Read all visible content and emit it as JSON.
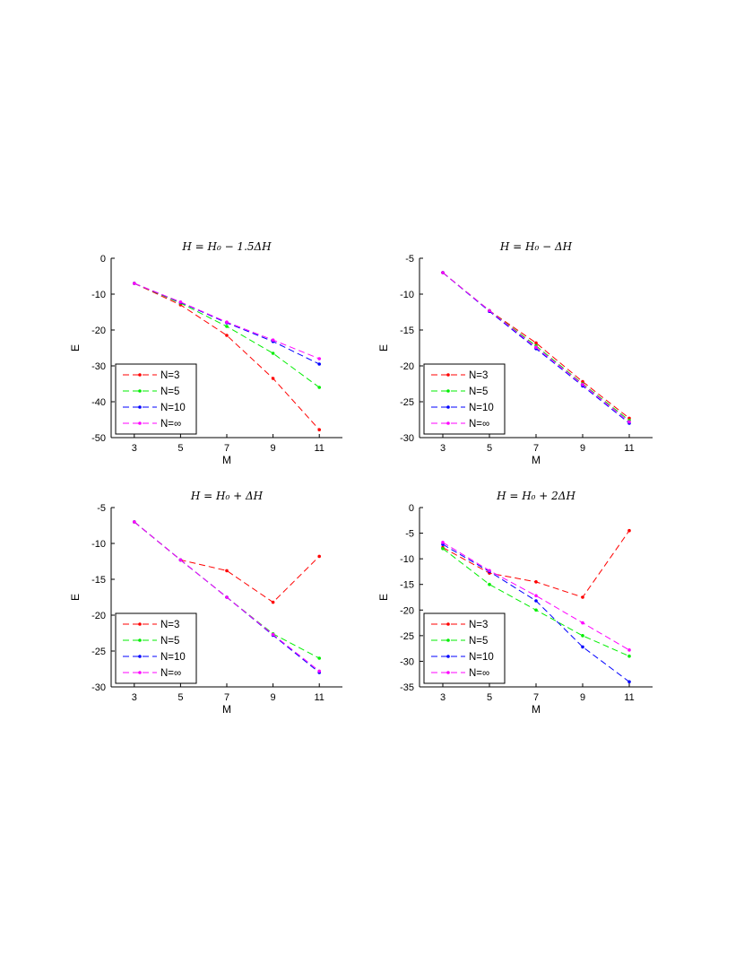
{
  "chart_data": [
    {
      "type": "line",
      "title": "H = H₀ − 1.5ΔH",
      "xlabel": "M",
      "ylabel": "E",
      "x": [
        3,
        5,
        7,
        9,
        11
      ],
      "xticks": [
        "3",
        "5",
        "7",
        "9",
        "11"
      ],
      "xlim": [
        2,
        12
      ],
      "ylim": [
        -50,
        0
      ],
      "yticks": [
        0,
        -10,
        -20,
        -30,
        -40,
        -50
      ],
      "legend_position": "bottom-left",
      "series": [
        {
          "name": "N=3",
          "color": "#ff0000",
          "values": [
            -7,
            -13,
            -21.5,
            -33.5,
            -47.8
          ]
        },
        {
          "name": "N=5",
          "color": "#00ee00",
          "values": [
            -7,
            -12.5,
            -19,
            -26.5,
            -36
          ]
        },
        {
          "name": "N=10",
          "color": "#0000ff",
          "values": [
            -7,
            -12.3,
            -18,
            -23.2,
            -29.5
          ]
        },
        {
          "name": "N=∞",
          "color": "#ff00ff",
          "values": [
            -7,
            -12.2,
            -17.8,
            -22.8,
            -28
          ]
        }
      ]
    },
    {
      "type": "line",
      "title": "H = H₀ − ΔH",
      "xlabel": "M",
      "ylabel": "E",
      "x": [
        3,
        5,
        7,
        9,
        11
      ],
      "xticks": [
        "3",
        "5",
        "7",
        "9",
        "11"
      ],
      "xlim": [
        2,
        12
      ],
      "ylim": [
        -30,
        -5
      ],
      "yticks": [
        -5,
        -10,
        -15,
        -20,
        -25,
        -30
      ],
      "legend_position": "bottom-left",
      "series": [
        {
          "name": "N=3",
          "color": "#ff0000",
          "values": [
            -7,
            -12.3,
            -16.8,
            -22.2,
            -27.3
          ]
        },
        {
          "name": "N=5",
          "color": "#00ee00",
          "values": [
            -7,
            -12.3,
            -17.2,
            -22.5,
            -27.6
          ]
        },
        {
          "name": "N=10",
          "color": "#0000ff",
          "values": [
            -7,
            -12.4,
            -17.6,
            -22.8,
            -28
          ]
        },
        {
          "name": "N=∞",
          "color": "#ff00ff",
          "values": [
            -7,
            -12.3,
            -17.4,
            -22.6,
            -27.8
          ]
        }
      ]
    },
    {
      "type": "line",
      "title": "H = H₀ + ΔH",
      "xlabel": "M",
      "ylabel": "E",
      "x": [
        3,
        5,
        7,
        9,
        11
      ],
      "xticks": [
        "3",
        "5",
        "7",
        "9",
        "11"
      ],
      "xlim": [
        2,
        12
      ],
      "ylim": [
        -30,
        -5
      ],
      "yticks": [
        -5,
        -10,
        -15,
        -20,
        -25,
        -30
      ],
      "legend_position": "bottom-left",
      "series": [
        {
          "name": "N=3",
          "color": "#ff0000",
          "values": [
            -7,
            -12.3,
            -13.8,
            -18.2,
            -11.8
          ]
        },
        {
          "name": "N=5",
          "color": "#00ee00",
          "values": [
            -7,
            -12.3,
            -17.5,
            -22.6,
            -26
          ]
        },
        {
          "name": "N=10",
          "color": "#0000ff",
          "values": [
            -7,
            -12.3,
            -17.5,
            -22.8,
            -28
          ]
        },
        {
          "name": "N=∞",
          "color": "#ff00ff",
          "values": [
            -7,
            -12.3,
            -17.5,
            -22.7,
            -27.8
          ]
        }
      ]
    },
    {
      "type": "line",
      "title": "H = H₀ + 2ΔH",
      "xlabel": "M",
      "ylabel": "E",
      "x": [
        3,
        5,
        7,
        9,
        11
      ],
      "xticks": [
        "3",
        "5",
        "7",
        "9",
        "11"
      ],
      "xlim": [
        2,
        12
      ],
      "ylim": [
        -35,
        0
      ],
      "yticks": [
        0,
        -5,
        -10,
        -15,
        -20,
        -25,
        -30,
        -35
      ],
      "legend_position": "bottom-left",
      "series": [
        {
          "name": "N=3",
          "color": "#ff0000",
          "values": [
            -7.8,
            -12.8,
            -14.5,
            -17.5,
            -4.5
          ]
        },
        {
          "name": "N=5",
          "color": "#00ee00",
          "values": [
            -8,
            -15,
            -20,
            -25,
            -29
          ]
        },
        {
          "name": "N=10",
          "color": "#0000ff",
          "values": [
            -7.2,
            -12.5,
            -18.2,
            -27.2,
            -34
          ]
        },
        {
          "name": "N=∞",
          "color": "#ff00ff",
          "values": [
            -6.8,
            -12.3,
            -17.2,
            -22.5,
            -27.8
          ]
        }
      ]
    }
  ]
}
